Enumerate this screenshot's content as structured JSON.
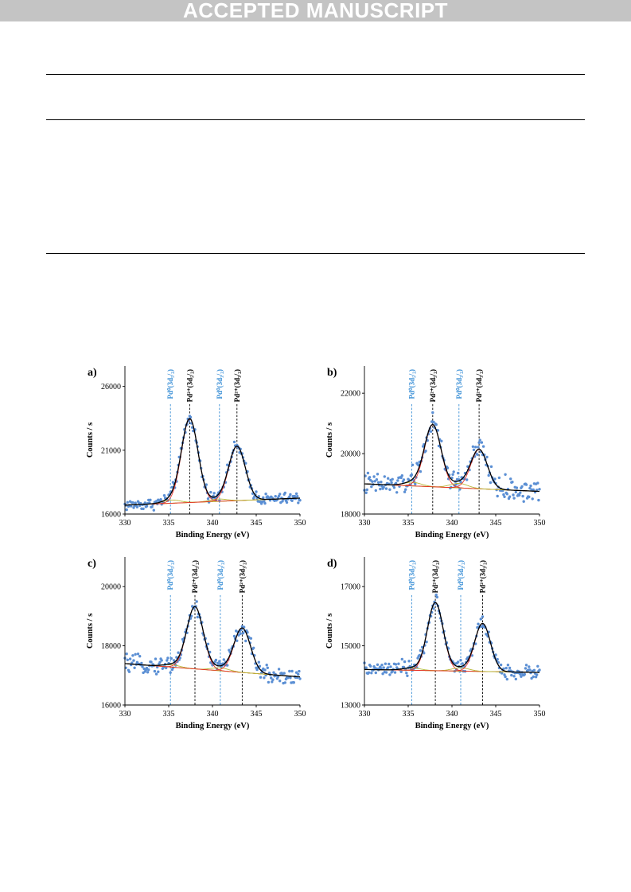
{
  "banner": {
    "text": "ACCEPTED MANUSCRIPT"
  },
  "colors": {
    "banner_bg": "#c4c4c4",
    "points": "#5b8fd4",
    "envelope": "#000000",
    "component": "#e8332a",
    "background": "#b8b83a",
    "pd0_label": "#3a8fd6",
    "pd2_label": "#000000"
  },
  "chart_data": [
    {
      "panel": "a)",
      "type": "scatter",
      "xlabel": "Binding Energy (eV)",
      "ylabel": "Counts / s",
      "xlim": [
        330,
        350
      ],
      "ylim": [
        16000,
        27600
      ],
      "xticks": [
        330,
        335,
        340,
        345,
        350
      ],
      "yticks": [
        16000,
        21000,
        26000
      ],
      "xtick_labels": [
        "330",
        "335",
        "340",
        "345",
        "350"
      ],
      "ytick_labels": [
        "16000",
        "21000",
        "26000"
      ],
      "background": {
        "start": 16700,
        "end": 17250
      },
      "components": [
        {
          "center": 335.3,
          "height": 250,
          "width": 1.0,
          "kind": "zero"
        },
        {
          "center": 337.4,
          "height": 6550,
          "width": 0.95,
          "kind": "two"
        },
        {
          "center": 340.7,
          "height": 180,
          "width": 1.0,
          "kind": "zero"
        },
        {
          "center": 342.8,
          "height": 4250,
          "width": 0.95,
          "kind": "two"
        }
      ],
      "noise": 280,
      "peak_labels": [
        {
          "x": 335.2,
          "text": "Pd⁰(3d₅/₂)",
          "kind": "zero"
        },
        {
          "x": 337.4,
          "text": "Pd²⁺(3d₅/₂)",
          "kind": "two"
        },
        {
          "x": 340.8,
          "text": "Pd⁰(3d₃/₂)",
          "kind": "zero"
        },
        {
          "x": 342.8,
          "text": "Pd²⁺(3d₃/₂)",
          "kind": "two"
        }
      ]
    },
    {
      "panel": "b)",
      "type": "scatter",
      "xlabel": "Binding Energy (eV)",
      "ylabel": "Counts / s",
      "xlim": [
        330,
        350
      ],
      "ylim": [
        18000,
        22900
      ],
      "xticks": [
        330,
        335,
        340,
        345,
        350
      ],
      "yticks": [
        18000,
        20000,
        22000
      ],
      "xtick_labels": [
        "330",
        "335",
        "340",
        "345",
        "350"
      ],
      "ytick_labels": [
        "18000",
        "20000",
        "22000"
      ],
      "background": {
        "start": 19000,
        "end": 18750
      },
      "components": [
        {
          "center": 335.5,
          "height": 120,
          "width": 1.0,
          "kind": "zero"
        },
        {
          "center": 337.8,
          "height": 2050,
          "width": 0.95,
          "kind": "two"
        },
        {
          "center": 340.8,
          "height": 150,
          "width": 1.0,
          "kind": "zero"
        },
        {
          "center": 343.1,
          "height": 1300,
          "width": 0.95,
          "kind": "two"
        }
      ],
      "noise": 230,
      "peak_labels": [
        {
          "x": 335.4,
          "text": "Pd⁰(3d₅/₂)",
          "kind": "zero"
        },
        {
          "x": 337.8,
          "text": "Pd²⁺(3d₅/₂)",
          "kind": "two"
        },
        {
          "x": 340.8,
          "text": "Pd⁰(3d₃/₂)",
          "kind": "zero"
        },
        {
          "x": 343.1,
          "text": "Pd²⁺(3d₃/₂)",
          "kind": "two"
        }
      ]
    },
    {
      "panel": "c)",
      "type": "scatter",
      "xlabel": "Binding Energy (eV)",
      "ylabel": "Counts / s",
      "xlim": [
        330,
        350
      ],
      "ylim": [
        16000,
        21000
      ],
      "xticks": [
        330,
        335,
        340,
        345,
        350
      ],
      "yticks": [
        16000,
        18000,
        20000
      ],
      "xtick_labels": [
        "330",
        "335",
        "340",
        "345",
        "350"
      ],
      "ytick_labels": [
        "16000",
        "18000",
        "20000"
      ],
      "background": {
        "start": 17400,
        "end": 16950
      },
      "components": [
        {
          "center": 335.3,
          "height": 80,
          "width": 1.0,
          "kind": "zero"
        },
        {
          "center": 338.0,
          "height": 2100,
          "width": 0.95,
          "kind": "two"
        },
        {
          "center": 340.9,
          "height": 100,
          "width": 1.0,
          "kind": "zero"
        },
        {
          "center": 343.4,
          "height": 1500,
          "width": 0.95,
          "kind": "two"
        }
      ],
      "noise": 170,
      "peak_labels": [
        {
          "x": 335.2,
          "text": "Pd⁰(3d₅/₂)",
          "kind": "zero"
        },
        {
          "x": 338.0,
          "text": "Pd²⁺(3d₅/₂)",
          "kind": "two"
        },
        {
          "x": 340.9,
          "text": "Pd⁰(3d₃/₂)",
          "kind": "zero"
        },
        {
          "x": 343.4,
          "text": "Pd²⁺(3d₃/₂)",
          "kind": "two"
        }
      ]
    },
    {
      "panel": "d)",
      "type": "scatter",
      "xlabel": "Binding Energy (eV)",
      "ylabel": "Counts / s",
      "xlim": [
        330,
        350
      ],
      "ylim": [
        13000,
        18000
      ],
      "xticks": [
        330,
        335,
        340,
        345,
        350
      ],
      "yticks": [
        13000,
        15000,
        17000
      ],
      "xtick_labels": [
        "330",
        "335",
        "340",
        "345",
        "350"
      ],
      "ytick_labels": [
        "13000",
        "15000",
        "17000"
      ],
      "background": {
        "start": 14200,
        "end": 14100
      },
      "components": [
        {
          "center": 335.4,
          "height": 80,
          "width": 1.0,
          "kind": "zero"
        },
        {
          "center": 338.1,
          "height": 2300,
          "width": 0.9,
          "kind": "two"
        },
        {
          "center": 341.0,
          "height": 110,
          "width": 1.0,
          "kind": "zero"
        },
        {
          "center": 343.5,
          "height": 1620,
          "width": 0.9,
          "kind": "two"
        }
      ],
      "noise": 150,
      "peak_labels": [
        {
          "x": 335.4,
          "text": "Pd⁰(3d₅/₂)",
          "kind": "zero"
        },
        {
          "x": 338.1,
          "text": "Pd²⁺(3d₅/₂)",
          "kind": "two"
        },
        {
          "x": 341.0,
          "text": "Pd⁰(3d₃/₂)",
          "kind": "zero"
        },
        {
          "x": 343.5,
          "text": "Pd²⁺(3d₃/₂)",
          "kind": "two"
        }
      ]
    }
  ]
}
